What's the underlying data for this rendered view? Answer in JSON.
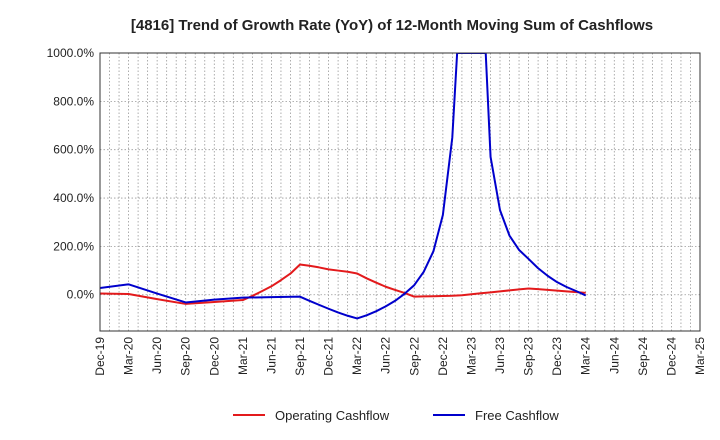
{
  "chart_data": {
    "type": "line",
    "title": "[4816]  Trend of Growth Rate (YoY) of 12-Month Moving Sum of Cashflows",
    "xlabel": "",
    "ylabel": "",
    "x": [
      "Dec-19",
      "Mar-20",
      "Jun-20",
      "Sep-20",
      "Dec-20",
      "Mar-21",
      "Jun-21",
      "Sep-21",
      "Dec-21",
      "Mar-22",
      "Jun-22",
      "Sep-22",
      "Dec-22",
      "Mar-23",
      "Jun-23",
      "Sep-23",
      "Dec-23",
      "Mar-24",
      "Jun-24",
      "Sep-24",
      "Dec-24",
      "Mar-25"
    ],
    "ylim": [
      -150,
      1000
    ],
    "yticks": [
      0,
      200,
      400,
      600,
      800,
      1000
    ],
    "ytick_labels": [
      "0.0%",
      "200.0%",
      "400.0%",
      "600.0%",
      "800.0%",
      "1000.0%"
    ],
    "grid": true,
    "legend_position": "bottom",
    "series": [
      {
        "name": "Operating Cashflow",
        "color": "#e31a1c",
        "points": [
          [
            0,
            5
          ],
          [
            1,
            3
          ],
          [
            2,
            -18
          ],
          [
            3,
            -38
          ],
          [
            4,
            -30
          ],
          [
            5,
            -22
          ],
          [
            5.33,
            -5
          ],
          [
            5.67,
            15
          ],
          [
            6,
            35
          ],
          [
            6.33,
            60
          ],
          [
            6.67,
            88
          ],
          [
            7,
            125
          ],
          [
            7.33,
            120
          ],
          [
            7.67,
            113
          ],
          [
            8,
            105
          ],
          [
            8.33,
            100
          ],
          [
            8.67,
            95
          ],
          [
            9,
            88
          ],
          [
            9.33,
            68
          ],
          [
            9.67,
            50
          ],
          [
            10,
            33
          ],
          [
            10.33,
            20
          ],
          [
            10.67,
            7
          ],
          [
            11,
            -8
          ],
          [
            11.33,
            -7
          ],
          [
            11.67,
            -6
          ],
          [
            12,
            -5
          ],
          [
            12.33,
            -4
          ],
          [
            12.67,
            -2
          ],
          [
            13,
            2
          ],
          [
            13.33,
            6
          ],
          [
            13.67,
            10
          ],
          [
            14,
            14
          ],
          [
            14.33,
            18
          ],
          [
            14.67,
            22
          ],
          [
            15,
            26
          ],
          [
            15.33,
            23
          ],
          [
            15.67,
            20
          ],
          [
            16,
            17
          ],
          [
            16.33,
            14
          ],
          [
            16.67,
            11
          ],
          [
            17,
            8
          ]
        ]
      },
      {
        "name": "Free Cashflow",
        "color": "#0000cc",
        "points": [
          [
            0,
            28
          ],
          [
            1,
            43
          ],
          [
            2,
            5
          ],
          [
            3,
            -32
          ],
          [
            4,
            -20
          ],
          [
            5,
            -12
          ],
          [
            6,
            -10
          ],
          [
            7,
            -8
          ],
          [
            7.33,
            -25
          ],
          [
            7.67,
            -42
          ],
          [
            8,
            -58
          ],
          [
            8.33,
            -73
          ],
          [
            8.67,
            -87
          ],
          [
            9,
            -98
          ],
          [
            9.33,
            -85
          ],
          [
            9.67,
            -68
          ],
          [
            10,
            -48
          ],
          [
            10.33,
            -25
          ],
          [
            10.67,
            5
          ],
          [
            11,
            40
          ],
          [
            11.33,
            95
          ],
          [
            11.67,
            180
          ],
          [
            12,
            330
          ],
          [
            12.33,
            650
          ],
          [
            12.5,
            1000
          ],
          [
            13.5,
            1000
          ],
          [
            13.67,
            570
          ],
          [
            14,
            350
          ],
          [
            14.33,
            245
          ],
          [
            14.67,
            185
          ],
          [
            15,
            148
          ],
          [
            15.33,
            110
          ],
          [
            15.67,
            78
          ],
          [
            16,
            52
          ],
          [
            16.33,
            32
          ],
          [
            16.67,
            15
          ],
          [
            17,
            -3
          ]
        ]
      }
    ]
  }
}
